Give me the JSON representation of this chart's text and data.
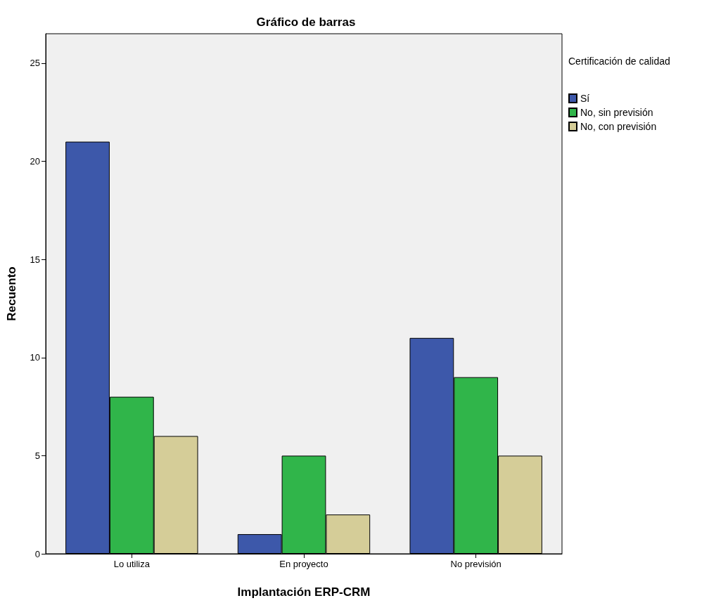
{
  "chart_data": {
    "type": "bar",
    "title": "Gráfico de barras",
    "xlabel": "Implantación ERP-CRM",
    "ylabel": "Recuento",
    "legend_title": "Certificación de calidad",
    "categories": [
      "Lo utiliza",
      "En proyecto",
      "No previsión"
    ],
    "series": [
      {
        "name": "Sí",
        "color": "#3d58aa",
        "values": [
          21,
          1,
          11
        ]
      },
      {
        "name": "No, sin previsión",
        "color": "#30b54a",
        "values": [
          8,
          5,
          9
        ]
      },
      {
        "name": "No, con previsión",
        "color": "#d5cd98",
        "values": [
          6,
          2,
          5
        ]
      }
    ],
    "ylim": [
      0,
      26.5
    ],
    "yticks": [
      0,
      5,
      10,
      15,
      20,
      25
    ],
    "grid": false,
    "legend": "top right"
  }
}
